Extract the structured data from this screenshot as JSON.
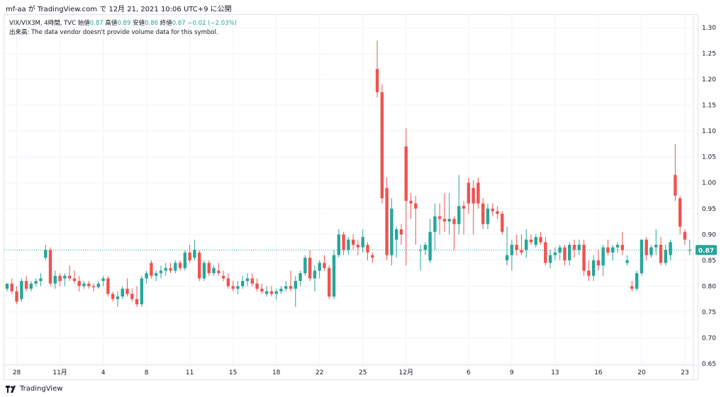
{
  "header": {
    "text": "mf-aa が TradingView.com で 12月 21, 2021 10:06 UTC+9 に公開"
  },
  "legend": {
    "symbol": "VIX/VIX3M, 4時間, TVC",
    "open_label": "始値",
    "open": "0.87",
    "high_label": "高値",
    "high": "0.89",
    "low_label": "安値",
    "low": "0.86",
    "close_label": "終値",
    "close": "0.87",
    "change": "−0.02 (−2.03%)",
    "volume_note": "出来高: The data vendor doesn't provide volume data for this symbol."
  },
  "footer": {
    "brand": "TradingView"
  },
  "colors": {
    "up": "#26a69a",
    "down": "#ef5350",
    "grid": "#f0f3fa",
    "last_price_bg": "#26a69a"
  },
  "chart_data": {
    "type": "candlestick",
    "y_ticks": [
      "1.30",
      "1.25",
      "1.20",
      "1.15",
      "1.10",
      "1.05",
      "1.00",
      "0.95",
      "0.90",
      "0.85",
      "0.80",
      "0.75",
      "0.70",
      "0.65"
    ],
    "ylim": [
      0.65,
      1.3
    ],
    "x_ticks": [
      {
        "label": "28",
        "index": 2
      },
      {
        "label": "11月",
        "index": 11
      },
      {
        "label": "4",
        "index": 20
      },
      {
        "label": "8",
        "index": 29
      },
      {
        "label": "11",
        "index": 38
      },
      {
        "label": "15",
        "index": 47
      },
      {
        "label": "18",
        "index": 56
      },
      {
        "label": "22",
        "index": 65
      },
      {
        "label": "25",
        "index": 74
      },
      {
        "label": "12月",
        "index": 83
      },
      {
        "label": "6",
        "index": 96
      },
      {
        "label": "9",
        "index": 105
      },
      {
        "label": "13",
        "index": 114
      },
      {
        "label": "16",
        "index": 123
      },
      {
        "label": "20",
        "index": 132
      },
      {
        "label": "23",
        "index": 141
      }
    ],
    "last_price": "0.87",
    "last_price_value": 0.87,
    "candles": [
      [
        0.795,
        0.805,
        0.79,
        0.805
      ],
      [
        0.805,
        0.815,
        0.785,
        0.79
      ],
      [
        0.79,
        0.8,
        0.765,
        0.77
      ],
      [
        0.775,
        0.815,
        0.77,
        0.81
      ],
      [
        0.81,
        0.82,
        0.79,
        0.795
      ],
      [
        0.795,
        0.81,
        0.79,
        0.805
      ],
      [
        0.805,
        0.815,
        0.8,
        0.81
      ],
      [
        0.81,
        0.825,
        0.8,
        0.815
      ],
      [
        0.855,
        0.88,
        0.85,
        0.87
      ],
      [
        0.87,
        0.875,
        0.8,
        0.805
      ],
      [
        0.805,
        0.83,
        0.795,
        0.82
      ],
      [
        0.82,
        0.825,
        0.8,
        0.81
      ],
      [
        0.815,
        0.825,
        0.8,
        0.82
      ],
      [
        0.82,
        0.84,
        0.81,
        0.815
      ],
      [
        0.815,
        0.83,
        0.805,
        0.81
      ],
      [
        0.81,
        0.82,
        0.79,
        0.8
      ],
      [
        0.8,
        0.81,
        0.795,
        0.805
      ],
      [
        0.805,
        0.81,
        0.795,
        0.8
      ],
      [
        0.8,
        0.805,
        0.79,
        0.798
      ],
      [
        0.798,
        0.81,
        0.795,
        0.805
      ],
      [
        0.81,
        0.82,
        0.8,
        0.815
      ],
      [
        0.815,
        0.82,
        0.78,
        0.785
      ],
      [
        0.785,
        0.79,
        0.77,
        0.775
      ],
      [
        0.775,
        0.79,
        0.76,
        0.78
      ],
      [
        0.78,
        0.8,
        0.775,
        0.795
      ],
      [
        0.795,
        0.815,
        0.78,
        0.785
      ],
      [
        0.785,
        0.795,
        0.77,
        0.775
      ],
      [
        0.775,
        0.8,
        0.76,
        0.765
      ],
      [
        0.765,
        0.82,
        0.76,
        0.815
      ],
      [
        0.815,
        0.83,
        0.805,
        0.825
      ],
      [
        0.845,
        0.85,
        0.815,
        0.82
      ],
      [
        0.82,
        0.83,
        0.81,
        0.825
      ],
      [
        0.825,
        0.84,
        0.815,
        0.83
      ],
      [
        0.83,
        0.845,
        0.82,
        0.835
      ],
      [
        0.835,
        0.845,
        0.825,
        0.83
      ],
      [
        0.83,
        0.85,
        0.825,
        0.845
      ],
      [
        0.845,
        0.85,
        0.83,
        0.835
      ],
      [
        0.835,
        0.87,
        0.83,
        0.865
      ],
      [
        0.865,
        0.88,
        0.845,
        0.85
      ],
      [
        0.855,
        0.89,
        0.85,
        0.87
      ],
      [
        0.865,
        0.87,
        0.81,
        0.815
      ],
      [
        0.815,
        0.85,
        0.81,
        0.845
      ],
      [
        0.845,
        0.85,
        0.82,
        0.825
      ],
      [
        0.825,
        0.84,
        0.82,
        0.835
      ],
      [
        0.83,
        0.845,
        0.82,
        0.825
      ],
      [
        0.82,
        0.83,
        0.81,
        0.815
      ],
      [
        0.815,
        0.825,
        0.795,
        0.8
      ],
      [
        0.8,
        0.81,
        0.79,
        0.795
      ],
      [
        0.795,
        0.81,
        0.785,
        0.8
      ],
      [
        0.8,
        0.82,
        0.795,
        0.81
      ],
      [
        0.81,
        0.825,
        0.8,
        0.815
      ],
      [
        0.815,
        0.825,
        0.8,
        0.805
      ],
      [
        0.805,
        0.815,
        0.79,
        0.795
      ],
      [
        0.795,
        0.805,
        0.785,
        0.79
      ],
      [
        0.785,
        0.8,
        0.78,
        0.79
      ],
      [
        0.79,
        0.8,
        0.78,
        0.785
      ],
      [
        0.785,
        0.795,
        0.775,
        0.79
      ],
      [
        0.79,
        0.8,
        0.785,
        0.795
      ],
      [
        0.795,
        0.81,
        0.79,
        0.8
      ],
      [
        0.8,
        0.83,
        0.79,
        0.795
      ],
      [
        0.795,
        0.82,
        0.76,
        0.81
      ],
      [
        0.81,
        0.83,
        0.8,
        0.825
      ],
      [
        0.825,
        0.86,
        0.82,
        0.855
      ],
      [
        0.855,
        0.87,
        0.81,
        0.815
      ],
      [
        0.815,
        0.84,
        0.79,
        0.83
      ],
      [
        0.83,
        0.85,
        0.815,
        0.845
      ],
      [
        0.845,
        0.86,
        0.83,
        0.835
      ],
      [
        0.835,
        0.84,
        0.775,
        0.78
      ],
      [
        0.78,
        0.87,
        0.775,
        0.86
      ],
      [
        0.86,
        0.91,
        0.855,
        0.9
      ],
      [
        0.9,
        0.905,
        0.86,
        0.87
      ],
      [
        0.87,
        0.895,
        0.86,
        0.89
      ],
      [
        0.89,
        0.9,
        0.87,
        0.88
      ],
      [
        0.88,
        0.89,
        0.86,
        0.875
      ],
      [
        0.875,
        0.91,
        0.865,
        0.895
      ],
      [
        0.88,
        0.885,
        0.85,
        0.865
      ],
      [
        0.86,
        0.865,
        0.845,
        0.855
      ],
      [
        1.22,
        1.275,
        1.165,
        1.175
      ],
      [
        1.175,
        1.19,
        0.96,
        0.97
      ],
      [
        0.99,
        1.01,
        0.85,
        0.86
      ],
      [
        0.86,
        0.97,
        0.84,
        0.95
      ],
      [
        0.89,
        0.915,
        0.855,
        0.91
      ],
      [
        0.91,
        0.92,
        0.88,
        0.9
      ],
      [
        1.07,
        1.105,
        0.84,
        0.965
      ],
      [
        0.965,
        0.98,
        0.93,
        0.96
      ],
      [
        0.96,
        0.975,
        0.88,
        0.95
      ],
      [
        0.87,
        0.88,
        0.83,
        0.87
      ],
      [
        0.87,
        0.885,
        0.86,
        0.88
      ],
      [
        0.85,
        0.93,
        0.845,
        0.905
      ],
      [
        0.905,
        0.96,
        0.87,
        0.935
      ],
      [
        0.935,
        0.96,
        0.9,
        0.93
      ],
      [
        0.93,
        0.98,
        0.905,
        0.925
      ],
      [
        0.925,
        0.98,
        0.9,
        0.93
      ],
      [
        0.93,
        0.935,
        0.87,
        0.92
      ],
      [
        0.92,
        1.015,
        0.9,
        0.955
      ],
      [
        0.955,
        0.965,
        0.9,
        0.95
      ],
      [
        1.0,
        1.01,
        0.94,
        0.96
      ],
      [
        0.99,
        1.005,
        0.9,
        0.96
      ],
      [
        1.0,
        1.01,
        0.95,
        0.96
      ],
      [
        0.96,
        0.97,
        0.91,
        0.92
      ],
      [
        0.92,
        0.96,
        0.91,
        0.95
      ],
      [
        0.95,
        0.96,
        0.935,
        0.945
      ],
      [
        0.945,
        0.955,
        0.93,
        0.94
      ],
      [
        0.94,
        0.945,
        0.9,
        0.905
      ],
      [
        0.85,
        0.915,
        0.84,
        0.86
      ],
      [
        0.86,
        0.89,
        0.83,
        0.88
      ],
      [
        0.88,
        0.9,
        0.86,
        0.87
      ],
      [
        0.87,
        0.9,
        0.86,
        0.865
      ],
      [
        0.87,
        0.91,
        0.855,
        0.89
      ],
      [
        0.89,
        0.9,
        0.88,
        0.885
      ],
      [
        0.88,
        0.9,
        0.875,
        0.895
      ],
      [
        0.895,
        0.905,
        0.88,
        0.885
      ],
      [
        0.885,
        0.895,
        0.84,
        0.845
      ],
      [
        0.845,
        0.87,
        0.835,
        0.86
      ],
      [
        0.86,
        0.875,
        0.85,
        0.865
      ],
      [
        0.865,
        0.88,
        0.85,
        0.875
      ],
      [
        0.875,
        0.88,
        0.84,
        0.85
      ],
      [
        0.85,
        0.885,
        0.84,
        0.88
      ],
      [
        0.88,
        0.89,
        0.855,
        0.87
      ],
      [
        0.87,
        0.89,
        0.86,
        0.88
      ],
      [
        0.88,
        0.89,
        0.82,
        0.83
      ],
      [
        0.83,
        0.85,
        0.81,
        0.82
      ],
      [
        0.82,
        0.86,
        0.81,
        0.85
      ],
      [
        0.85,
        0.87,
        0.83,
        0.84
      ],
      [
        0.84,
        0.88,
        0.82,
        0.875
      ],
      [
        0.875,
        0.89,
        0.86,
        0.865
      ],
      [
        0.865,
        0.88,
        0.85,
        0.875
      ],
      [
        0.875,
        0.885,
        0.865,
        0.88
      ],
      [
        0.88,
        0.905,
        0.86,
        0.87
      ],
      [
        0.845,
        0.86,
        0.84,
        0.85
      ],
      [
        0.8,
        0.81,
        0.79,
        0.795
      ],
      [
        0.795,
        0.83,
        0.79,
        0.825
      ],
      [
        0.825,
        0.89,
        0.82,
        0.89
      ],
      [
        0.89,
        0.895,
        0.85,
        0.86
      ],
      [
        0.86,
        0.88,
        0.855,
        0.875
      ],
      [
        0.875,
        0.91,
        0.86,
        0.88
      ],
      [
        0.88,
        0.895,
        0.84,
        0.845
      ],
      [
        0.845,
        0.88,
        0.84,
        0.87
      ],
      [
        0.86,
        0.89,
        0.85,
        0.885
      ],
      [
        1.015,
        1.075,
        0.965,
        0.975
      ],
      [
        0.97,
        0.975,
        0.9,
        0.915
      ],
      [
        0.905,
        0.91,
        0.88,
        0.89
      ],
      [
        0.87,
        0.89,
        0.86,
        0.87
      ]
    ]
  }
}
